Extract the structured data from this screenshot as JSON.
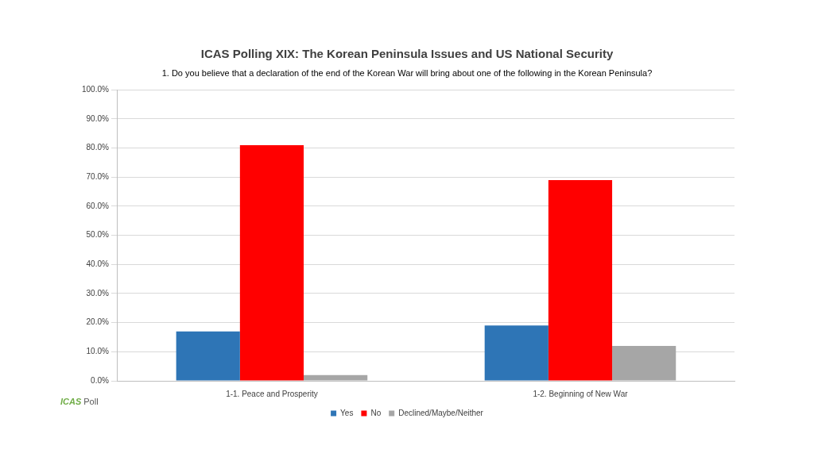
{
  "chart_data": {
    "type": "bar",
    "title": "ICAS Polling XIX: The Korean Peninsula Issues and US National Security",
    "subtitle": "1. Do you believe that a declaration of the end of the Korean War will bring about one of the following in the Korean Peninsula?",
    "categories": [
      "1-1. Peace and Prosperity",
      "1-2. Beginning of New War"
    ],
    "series": [
      {
        "name": "Yes",
        "color": "#2e75b6",
        "values": [
          17,
          19
        ]
      },
      {
        "name": "No",
        "color": "#ff0000",
        "values": [
          81,
          69
        ]
      },
      {
        "name": "Declined/Maybe/Neither",
        "color": "#a6a6a6",
        "values": [
          2,
          12
        ]
      }
    ],
    "ylim": [
      0,
      100
    ],
    "yticks": [
      {
        "value": 0,
        "label": "0.0%"
      },
      {
        "value": 10,
        "label": "10.0%"
      },
      {
        "value": 20,
        "label": "20.0%"
      },
      {
        "value": 30,
        "label": "30.0%"
      },
      {
        "value": 40,
        "label": "40.0%"
      },
      {
        "value": 50,
        "label": "50.0%"
      },
      {
        "value": 60,
        "label": "60.0%"
      },
      {
        "value": 70,
        "label": "70.0%"
      },
      {
        "value": 80,
        "label": "80.0%"
      },
      {
        "value": 90,
        "label": "90.0%"
      },
      {
        "value": 100,
        "label": "100.0%"
      }
    ],
    "grid": true,
    "legend": "bottom",
    "annotations": [
      "ICAS",
      "Poll"
    ]
  }
}
